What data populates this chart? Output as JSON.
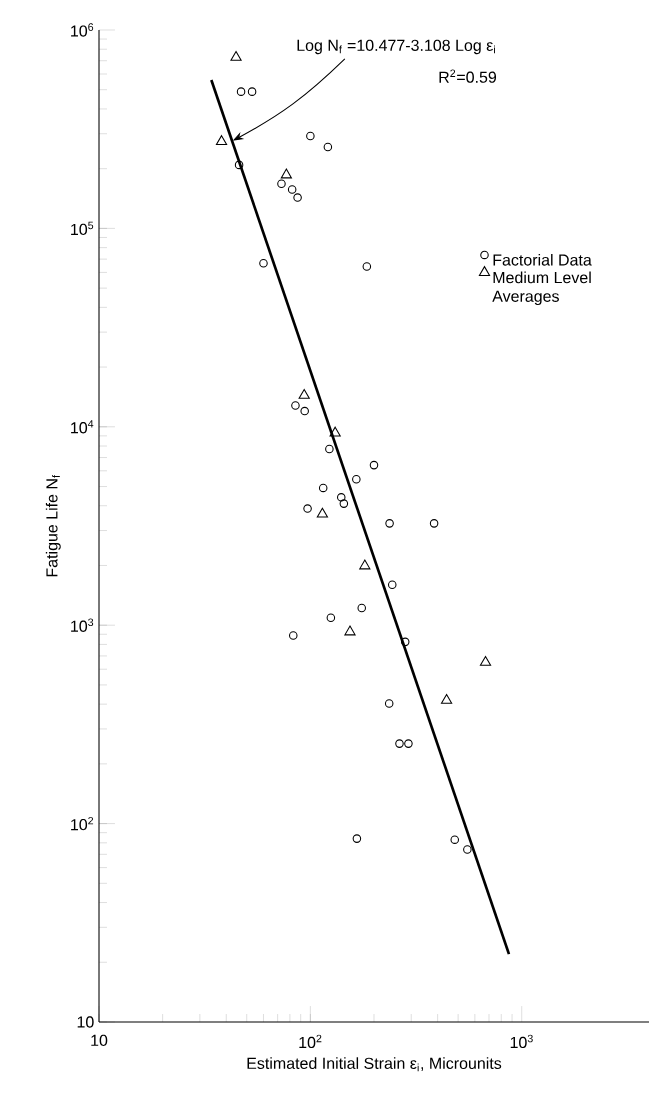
{
  "chart_data": {
    "type": "scatter",
    "xlabel": "Estimated Initial Strain ε$_{i}$, Microunits",
    "ylabel": "Fatigue Life N$_{f}$",
    "log": "xy",
    "grid": false,
    "legend": "right",
    "xlim": [
      10,
      4000
    ],
    "ylim": [
      10,
      1000000
    ],
    "xticks": [
      10,
      {
        "value": 100,
        "label": "10$^{2}$"
      },
      {
        "value": 1000,
        "label": "10$^{3}$"
      }
    ],
    "yticks": [
      10,
      {
        "value": 100,
        "label": "10$^{2}$"
      },
      {
        "value": 1000,
        "label": "10$^{3}$"
      },
      {
        "value": 10000,
        "label": "10$^{4}$"
      },
      {
        "value": 100000,
        "label": "10$^{5}$"
      },
      {
        "value": 1000000,
        "label": "10$^{6}$"
      }
    ],
    "annotations": [
      {
        "text": "Log  N$_{f}$ =10.477-3.108 Log ε$_{i}$",
        "x": 43,
        "y": 277000
      },
      "R$^{2}$=0.59"
    ],
    "series": [
      {
        "name": "Factorial Data",
        "marker": "circle",
        "color": "#000000",
        "x": [
          47,
          53,
          100,
          121,
          46,
          73,
          82,
          87,
          60,
          185,
          85,
          94,
          123,
          200,
          165,
          115,
          140,
          144,
          97,
          237,
          385,
          244,
          175,
          125,
          83,
          281,
          236,
          264,
          291,
          166,
          482,
          553
        ],
        "values": [
          489000,
          489000,
          292000,
          257000,
          209000,
          168000,
          157000,
          143000,
          66700,
          64300,
          12800,
          12000,
          7730,
          6410,
          5440,
          4920,
          4410,
          4100,
          3870,
          3260,
          3260,
          1600,
          1220,
          1090,
          887,
          824,
          403,
          253,
          253,
          84,
          83,
          74
        ]
      },
      {
        "name": "Medium Level Averages",
        "marker": "triangle",
        "color": "#000000",
        "x": [
          44.5,
          38,
          77,
          93.5,
          131,
          114,
          181,
          154,
          674,
          441
        ],
        "values": [
          728000,
          274000,
          186000,
          14400,
          9300,
          3630,
          1990,
          925,
          650,
          418
        ]
      },
      {
        "type": "line",
        "marker": "none",
        "line_style": "solid",
        "color": "#000000",
        "x": [
          34,
          870
        ],
        "values": [
          560000,
          22
        ]
      }
    ]
  }
}
